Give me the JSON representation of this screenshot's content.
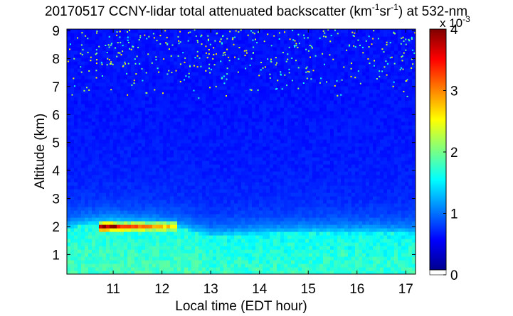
{
  "chart_data": {
    "type": "heatmap",
    "title": {
      "prefix": "20170517 CCNY-lidar total attenuated backscatter (km",
      "exp1": "-1",
      "mid": "sr",
      "exp2": "-1",
      "suffix": ") at 532-nm"
    },
    "xlabel": "Local time (EDT hour)",
    "ylabel": "Altitude (km)",
    "xlim": [
      10.05,
      17.2
    ],
    "ylim": [
      0.3,
      9.05
    ],
    "xticks": [
      11,
      12,
      13,
      14,
      15,
      16,
      17
    ],
    "yticks": [
      1,
      2,
      3,
      4,
      5,
      6,
      7,
      8,
      9
    ],
    "colorbar": {
      "range": [
        0,
        4
      ],
      "ticks": [
        0,
        1,
        2,
        3,
        4
      ],
      "multiplier_base": "x 10",
      "multiplier_exp": "-3",
      "colormap": "jet"
    },
    "features": {
      "boundary_layer_top_km": [
        {
          "t": 10.05,
          "h": 1.95
        },
        {
          "t": 10.5,
          "h": 2.1
        },
        {
          "t": 11.0,
          "h": 2.15
        },
        {
          "t": 11.5,
          "h": 2.1
        },
        {
          "t": 12.0,
          "h": 2.05
        },
        {
          "t": 12.5,
          "h": 1.9
        },
        {
          "t": 13.0,
          "h": 1.65
        },
        {
          "t": 14.0,
          "h": 1.75
        },
        {
          "t": 15.0,
          "h": 1.8
        },
        {
          "t": 16.0,
          "h": 1.8
        },
        {
          "t": 17.2,
          "h": 1.75
        }
      ],
      "cloud_layer": {
        "t_start": 10.7,
        "t_end": 12.3,
        "altitude_km": [
          1.8,
          2.2
        ],
        "peak_value": 4.0
      },
      "near_surface_value": 1.6,
      "free_troposphere_value": 0.55,
      "noise_above_km": 6.5
    }
  }
}
